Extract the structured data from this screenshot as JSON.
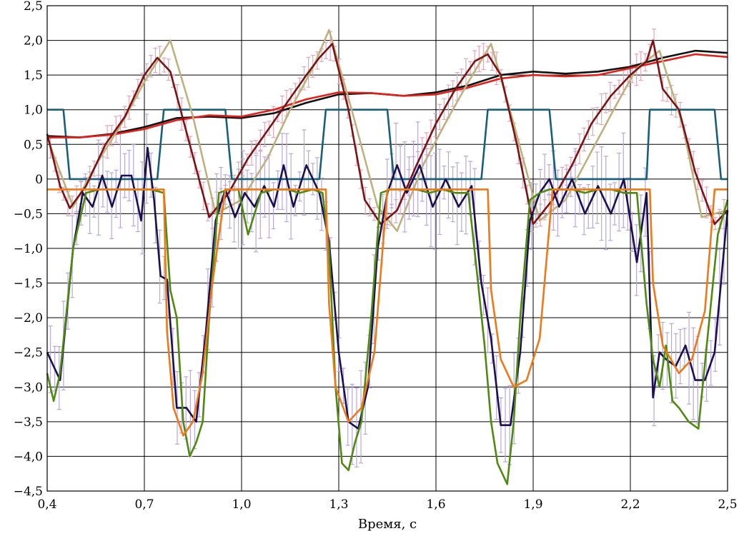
{
  "chart_data": {
    "type": "line",
    "xlabel": "Время, с",
    "ylabel": "",
    "xlim": [
      0.4,
      2.5
    ],
    "ylim": [
      -4.5,
      2.5
    ],
    "grid": true,
    "legend": "none",
    "xticks": [
      0.4,
      0.7,
      1.0,
      1.3,
      1.6,
      1.9,
      2.2,
      2.5
    ],
    "xtick_labels": [
      "0,4",
      "0,7",
      "1,0",
      "1,3",
      "1,6",
      "1,9",
      "2,2",
      "2,5"
    ],
    "yticks": [
      2.5,
      2.0,
      1.5,
      1.0,
      0.5,
      0,
      -0.5,
      -1.0,
      -1.5,
      -2.0,
      -2.5,
      -3.0,
      -3.5,
      -4.0,
      -4.5
    ],
    "ytick_labels": [
      "2,5",
      "2,0",
      "1,5",
      "1,0",
      "0,5",
      "0",
      "−0,5",
      "−1,0",
      "−1,5",
      "−2,0",
      "−2,5",
      "−3,0",
      "−3,5",
      "−4,0",
      "−4,5"
    ],
    "series": [
      {
        "color": "#1a5f7a",
        "x": [
          0.4,
          0.45,
          0.47,
          0.74,
          0.76,
          0.95,
          0.97,
          1.24,
          1.26,
          1.45,
          1.47,
          1.74,
          1.76,
          1.95,
          1.97,
          2.25,
          2.26,
          2.46,
          2.48,
          2.5
        ],
        "y": [
          1.0,
          1.0,
          0.0,
          0.0,
          1.0,
          1.0,
          0.0,
          0.0,
          1.0,
          1.0,
          0.0,
          0.0,
          1.0,
          1.0,
          0.0,
          0.0,
          1.0,
          1.0,
          0.0,
          0.0
        ]
      },
      {
        "color": "#111111",
        "x": [
          0.4,
          0.5,
          0.6,
          0.7,
          0.8,
          0.9,
          1.0,
          1.1,
          1.2,
          1.3,
          1.4,
          1.5,
          1.6,
          1.7,
          1.8,
          1.9,
          2.0,
          2.1,
          2.2,
          2.3,
          2.4,
          2.5
        ],
        "y": [
          0.62,
          0.6,
          0.65,
          0.75,
          0.88,
          0.9,
          0.88,
          0.95,
          1.1,
          1.22,
          1.24,
          1.2,
          1.25,
          1.35,
          1.5,
          1.55,
          1.52,
          1.55,
          1.62,
          1.75,
          1.85,
          1.82
        ]
      },
      {
        "color": "#e0201a",
        "x": [
          0.4,
          0.5,
          0.6,
          0.7,
          0.8,
          0.9,
          1.0,
          1.1,
          1.2,
          1.3,
          1.4,
          1.5,
          1.6,
          1.7,
          1.8,
          1.9,
          2.0,
          2.1,
          2.2,
          2.3,
          2.4,
          2.5
        ],
        "y": [
          0.6,
          0.6,
          0.64,
          0.72,
          0.85,
          0.92,
          0.9,
          1.0,
          1.15,
          1.25,
          1.24,
          1.2,
          1.22,
          1.32,
          1.45,
          1.5,
          1.48,
          1.5,
          1.6,
          1.7,
          1.8,
          1.76
        ]
      },
      {
        "color": "#bfb080",
        "x": [
          0.4,
          0.48,
          0.55,
          0.63,
          0.7,
          0.78,
          0.85,
          0.92,
          1.0,
          1.08,
          1.15,
          1.22,
          1.27,
          1.34,
          1.42,
          1.48,
          1.56,
          1.64,
          1.7,
          1.77,
          1.84,
          1.92,
          2.0,
          2.08,
          2.16,
          2.22,
          2.29,
          2.36,
          2.42,
          2.5
        ],
        "y": [
          0.6,
          -0.4,
          0.2,
          0.8,
          1.4,
          2.0,
          0.9,
          -0.5,
          -0.3,
          0.3,
          1.0,
          1.6,
          2.15,
          1.0,
          -0.4,
          -0.75,
          0.2,
          0.9,
          1.4,
          1.95,
          0.8,
          -0.6,
          -0.3,
          0.4,
          1.1,
          1.6,
          1.85,
          0.8,
          -0.55,
          -0.45
        ]
      },
      {
        "color": "#7a1414",
        "x": [
          0.4,
          0.44,
          0.47,
          0.52,
          0.58,
          0.64,
          0.7,
          0.74,
          0.78,
          0.84,
          0.9,
          0.96,
          1.02,
          1.08,
          1.14,
          1.2,
          1.24,
          1.28,
          1.33,
          1.38,
          1.43,
          1.48,
          1.54,
          1.6,
          1.66,
          1.72,
          1.76,
          1.8,
          1.85,
          1.9,
          1.96,
          2.02,
          2.08,
          2.14,
          2.2,
          2.25,
          2.27,
          2.3,
          2.35,
          2.4,
          2.46,
          2.5
        ],
        "y": [
          0.65,
          -0.1,
          -0.42,
          -0.1,
          0.5,
          0.9,
          1.5,
          1.75,
          1.55,
          0.5,
          -0.55,
          -0.2,
          0.3,
          0.7,
          1.1,
          1.5,
          1.75,
          1.95,
          1.0,
          -0.3,
          -0.65,
          -0.45,
          0.2,
          0.8,
          1.3,
          1.7,
          1.8,
          1.5,
          0.5,
          -0.65,
          -0.3,
          0.2,
          0.8,
          1.2,
          1.5,
          1.7,
          2.0,
          1.3,
          1.0,
          0.1,
          -0.65,
          -0.45
        ]
      },
      {
        "color": "#1c1050",
        "x": [
          0.4,
          0.44,
          0.48,
          0.51,
          0.54,
          0.57,
          0.6,
          0.63,
          0.66,
          0.69,
          0.71,
          0.73,
          0.75,
          0.77,
          0.8,
          0.83,
          0.86,
          0.89,
          0.92,
          0.95,
          0.98,
          1.01,
          1.04,
          1.07,
          1.1,
          1.13,
          1.16,
          1.2,
          1.24,
          1.27,
          1.3,
          1.33,
          1.36,
          1.39,
          1.42,
          1.45,
          1.48,
          1.51,
          1.55,
          1.59,
          1.63,
          1.67,
          1.71,
          1.74,
          1.77,
          1.8,
          1.83,
          1.86,
          1.89,
          1.92,
          1.95,
          1.98,
          2.02,
          2.06,
          2.1,
          2.14,
          2.18,
          2.22,
          2.25,
          2.27,
          2.29,
          2.31,
          2.34,
          2.37,
          2.4,
          2.43,
          2.46,
          2.5
        ],
        "y": [
          -2.5,
          -2.9,
          -1.0,
          -0.2,
          -0.4,
          0.05,
          -0.4,
          0.05,
          0.05,
          -0.6,
          0.45,
          -0.3,
          -1.4,
          -1.45,
          -3.3,
          -3.3,
          -3.5,
          -2.2,
          -0.6,
          -0.15,
          -0.55,
          -0.2,
          -0.4,
          -0.1,
          -0.4,
          0.2,
          -0.4,
          0.2,
          -0.2,
          -0.9,
          -2.5,
          -3.5,
          -3.6,
          -3.0,
          -1.0,
          -0.2,
          0.2,
          -0.2,
          0.2,
          -0.4,
          0.0,
          -0.4,
          -0.1,
          -1.5,
          -2.3,
          -3.55,
          -3.55,
          -2.5,
          -0.6,
          -0.2,
          0.0,
          -0.4,
          0.0,
          -0.5,
          -0.1,
          -0.5,
          0.0,
          -1.2,
          -0.2,
          -3.15,
          -2.5,
          -2.6,
          -2.7,
          -2.4,
          -2.9,
          -2.9,
          -2.5,
          -0.45
        ]
      },
      {
        "color": "#4f8a10",
        "x": [
          0.4,
          0.42,
          0.44,
          0.48,
          0.52,
          0.56,
          0.6,
          0.64,
          0.68,
          0.72,
          0.76,
          0.78,
          0.8,
          0.82,
          0.84,
          0.86,
          0.88,
          0.9,
          0.93,
          0.96,
          0.99,
          1.02,
          1.06,
          1.1,
          1.14,
          1.18,
          1.22,
          1.25,
          1.27,
          1.29,
          1.31,
          1.33,
          1.35,
          1.37,
          1.4,
          1.43,
          1.46,
          1.5,
          1.54,
          1.58,
          1.62,
          1.66,
          1.7,
          1.73,
          1.75,
          1.77,
          1.79,
          1.82,
          1.84,
          1.86,
          1.89,
          1.92,
          1.95,
          1.98,
          2.02,
          2.06,
          2.1,
          2.14,
          2.18,
          2.22,
          2.25,
          2.27,
          2.29,
          2.31,
          2.33,
          2.35,
          2.38,
          2.41,
          2.44,
          2.47,
          2.5
        ],
        "y": [
          -2.8,
          -3.2,
          -2.8,
          -1.0,
          -0.2,
          -0.15,
          -0.15,
          -0.15,
          -0.15,
          -0.15,
          -0.2,
          -1.6,
          -2.0,
          -3.5,
          -4.0,
          -3.8,
          -3.5,
          -2.0,
          -0.2,
          -0.15,
          -0.15,
          -0.8,
          -0.2,
          -0.15,
          -0.15,
          -0.2,
          -0.15,
          -0.2,
          -1.0,
          -3.0,
          -4.1,
          -4.2,
          -3.8,
          -3.5,
          -2.0,
          -0.2,
          -0.15,
          -0.15,
          -0.15,
          -0.2,
          -0.15,
          -0.2,
          -0.2,
          -1.5,
          -2.4,
          -3.5,
          -4.1,
          -4.4,
          -3.5,
          -2.0,
          -0.3,
          -0.2,
          -0.15,
          -0.15,
          -0.15,
          -0.2,
          -0.15,
          -0.15,
          -0.2,
          -0.2,
          -1.8,
          -2.6,
          -3.0,
          -2.4,
          -3.2,
          -3.3,
          -3.5,
          -3.6,
          -2.2,
          -0.8,
          -0.3
        ]
      },
      {
        "color": "#f07818",
        "x": [
          0.4,
          0.44,
          0.47,
          0.5,
          0.6,
          0.7,
          0.76,
          0.77,
          0.79,
          0.82,
          0.85,
          0.88,
          0.91,
          0.95,
          0.97,
          1.0,
          1.1,
          1.2,
          1.26,
          1.27,
          1.29,
          1.33,
          1.37,
          1.41,
          1.45,
          1.5,
          1.6,
          1.7,
          1.76,
          1.77,
          1.8,
          1.84,
          1.88,
          1.92,
          1.96,
          2.0,
          2.1,
          2.2,
          2.26,
          2.27,
          2.3,
          2.35,
          2.39,
          2.43,
          2.46,
          2.5
        ],
        "y": [
          -0.15,
          -0.15,
          -0.15,
          -0.15,
          -0.15,
          -0.15,
          -0.15,
          -2.2,
          -3.3,
          -3.7,
          -3.5,
          -2.8,
          -1.5,
          -0.15,
          -0.15,
          -0.15,
          -0.15,
          -0.15,
          -0.15,
          -1.8,
          -3.0,
          -3.5,
          -3.3,
          -2.5,
          -0.15,
          -0.15,
          -0.15,
          -0.15,
          -0.15,
          -1.6,
          -2.6,
          -3.0,
          -2.9,
          -2.3,
          -0.15,
          -0.15,
          -0.15,
          -0.15,
          -0.15,
          -1.5,
          -2.4,
          -2.8,
          -2.6,
          -1.9,
          -0.15,
          -0.15
        ]
      }
    ]
  },
  "errorbars": {
    "upper_color": "#e0a8b8",
    "lower_color": "#b8a8d8"
  }
}
